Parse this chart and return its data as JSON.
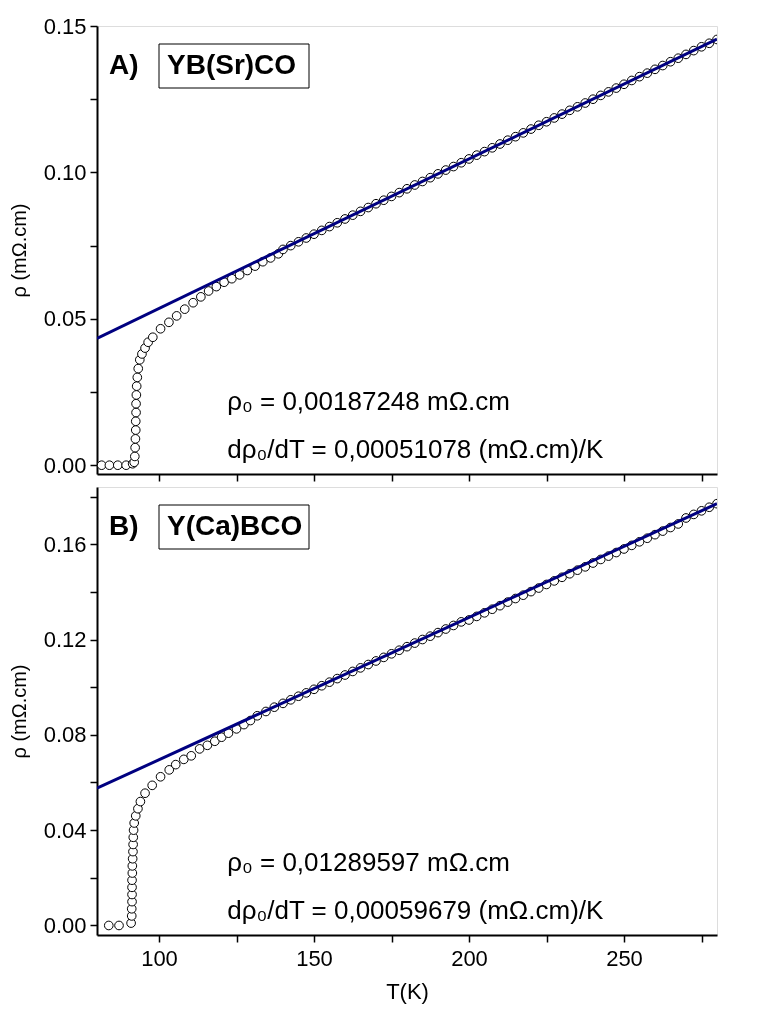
{
  "chart_data": [
    {
      "type": "scatter",
      "ylabel": "ρ (mΩ.cm)",
      "annotations": [
        "A)",
        "YB(Sr)CO",
        "ρ₀ = 0,00187248 mΩ.cm",
        "dρ₀/dT = 0,00051078 (mΩ.cm)/K"
      ],
      "xlim": [
        80,
        280
      ],
      "xticks": [
        {
          "value": 100,
          "label": null
        },
        {
          "value": 125,
          "label": null
        },
        {
          "value": 150,
          "label": null
        },
        {
          "value": 175,
          "label": null
        },
        {
          "value": 200,
          "label": null
        },
        {
          "value": 225,
          "label": null
        },
        {
          "value": 250,
          "label": null
        },
        {
          "value": 275,
          "label": null
        }
      ],
      "ylim": [
        -0.003,
        0.15
      ],
      "yticks": [
        {
          "value": 0,
          "label": "0.00"
        },
        {
          "value": 0.025,
          "label": null
        },
        {
          "value": 0.05,
          "label": "0.05"
        },
        {
          "value": 0.075,
          "label": null
        },
        {
          "value": 0.1,
          "label": "0.10"
        },
        {
          "value": 0.125,
          "label": null
        },
        {
          "value": 0.15,
          "label": "0.15"
        }
      ],
      "tick_labels": "y",
      "series": [
        {
          "marker": "circle",
          "color": "#000000",
          "x": [
            81.5,
            84,
            86.7,
            89.4,
            91.5,
            92,
            92.2,
            92.3,
            92.4,
            92.5,
            92.5,
            92.6,
            92.6,
            92.7,
            92.8,
            93,
            93.3,
            93.8,
            94.5,
            95.5,
            96.5,
            98,
            100.5,
            103.2,
            105.7,
            108.3,
            111,
            113.5,
            116,
            118.5,
            121,
            123.5,
            126,
            128.5,
            131,
            133.5,
            136,
            138.5,
            140,
            142.5,
            145,
            147.5,
            150,
            152.5,
            155,
            157.5,
            160,
            162.5,
            165,
            167.5,
            170,
            172.5,
            175,
            177.5,
            180,
            182.5,
            185,
            187.5,
            190,
            192.5,
            195,
            197.5,
            200,
            202.5,
            205,
            207.5,
            210,
            212.5,
            215,
            217.5,
            220,
            222.5,
            225,
            227.5,
            230,
            232.5,
            235,
            237.5,
            240,
            242.5,
            245,
            247.5,
            250,
            252.5,
            255,
            257.5,
            260,
            262.5,
            265,
            267.5,
            270,
            272.5,
            275,
            277.5,
            280
          ],
          "values": [
            0,
            0,
            0,
            0,
            0.0005,
            0.001,
            0.003,
            0.006,
            0.009,
            0.012,
            0.015,
            0.018,
            0.021,
            0.024,
            0.027,
            0.03,
            0.033,
            0.036,
            0.038,
            0.04,
            0.042,
            0.0437,
            0.0466,
            0.0488,
            0.051,
            0.0533,
            0.0555,
            0.0575,
            0.0595,
            0.061,
            0.0625,
            0.0637,
            0.065,
            0.0665,
            0.068,
            0.0695,
            0.0708,
            0.0722,
            0.0737,
            0.075,
            0.0763,
            0.0776,
            0.0789,
            0.0802,
            0.0815,
            0.0828,
            0.0841,
            0.0854,
            0.0867,
            0.088,
            0.0893,
            0.0905,
            0.0918,
            0.0931,
            0.0944,
            0.0957,
            0.0969,
            0.0982,
            0.0995,
            0.1008,
            0.102,
            0.1033,
            0.1046,
            0.1059,
            0.1071,
            0.1084,
            0.1097,
            0.111,
            0.1122,
            0.1135,
            0.1148,
            0.1161,
            0.1173,
            0.1186,
            0.1199,
            0.1212,
            0.1224,
            0.1237,
            0.125,
            0.1263,
            0.1275,
            0.1288,
            0.1301,
            0.1314,
            0.1327,
            0.1339,
            0.1352,
            0.1365,
            0.1378,
            0.139,
            0.1403,
            0.1416,
            0.1429,
            0.1441,
            0.1454
          ]
        },
        {
          "type": "line",
          "color": "#000080",
          "x": [
            80,
            280
          ],
          "values": [
            0.0433,
            0.1455
          ]
        }
      ]
    },
    {
      "type": "scatter",
      "xlabel": "T(K)",
      "ylabel": "ρ (mΩ.cm)",
      "annotations": [
        "B)",
        "Y(Ca)BCO",
        "ρ₀ = 0,01289597 mΩ.cm",
        "dρ₀/dT = 0,00059679 (mΩ.cm)/K"
      ],
      "xlim": [
        80,
        280
      ],
      "xticks": [
        100,
        {
          "value": 125,
          "label": null
        },
        150,
        {
          "value": 175,
          "label": null
        },
        200,
        {
          "value": 225,
          "label": null
        },
        250,
        {
          "value": 275,
          "label": null
        }
      ],
      "ylim": [
        -0.004,
        0.184
      ],
      "yticks": [
        {
          "value": 0,
          "label": "0.00"
        },
        {
          "value": 0.02,
          "label": null
        },
        {
          "value": 0.04,
          "label": "0.04"
        },
        {
          "value": 0.06,
          "label": null
        },
        {
          "value": 0.08,
          "label": "0.08"
        },
        {
          "value": 0.1,
          "label": null
        },
        {
          "value": 0.12,
          "label": "0.12"
        },
        {
          "value": 0.14,
          "label": null
        },
        {
          "value": 0.16,
          "label": "0.16"
        },
        {
          "value": 0.18,
          "label": null
        }
      ],
      "series": [
        {
          "marker": "circle",
          "color": "#000000",
          "x": [
            83.8,
            87.1,
            91,
            91.2,
            91.2,
            91.3,
            91.3,
            91.3,
            91.3,
            91.4,
            91.4,
            91.5,
            91.6,
            91.65,
            91.7,
            91.8,
            92,
            92.5,
            93.2,
            94,
            95.5,
            97.8,
            100.5,
            103.3,
            105.4,
            108,
            110.4,
            113.1,
            115.6,
            118,
            120.2,
            122.4,
            125,
            127.4,
            129.5,
            131.7,
            134.5,
            137.2,
            140,
            142.5,
            145,
            147.5,
            150,
            152.5,
            155,
            157.5,
            160,
            162.5,
            165,
            167.5,
            170,
            172.5,
            175,
            177.5,
            180,
            182.5,
            185,
            187.5,
            190,
            192.5,
            195,
            197.5,
            200,
            202.5,
            205,
            207.5,
            210,
            212.5,
            215,
            217.5,
            220,
            222.5,
            225,
            227.5,
            230,
            232.5,
            235,
            237.5,
            240,
            242.5,
            245,
            247.5,
            250,
            252.5,
            255,
            257.5,
            260,
            262.5,
            265,
            267.5,
            270,
            272.5,
            275,
            277.5,
            280
          ],
          "values": [
            0,
            0,
            0.001,
            0.004,
            0.007,
            0.01,
            0.013,
            0.016,
            0.019,
            0.022,
            0.025,
            0.028,
            0.031,
            0.034,
            0.037,
            0.04,
            0.043,
            0.046,
            0.049,
            0.052,
            0.0555,
            0.0588,
            0.0624,
            0.0653,
            0.0675,
            0.0697,
            0.0712,
            0.0741,
            0.0756,
            0.0773,
            0.079,
            0.0807,
            0.0825,
            0.0843,
            0.086,
            0.088,
            0.0898,
            0.0916,
            0.0932,
            0.0947,
            0.0962,
            0.0976,
            0.0991,
            0.1006,
            0.1021,
            0.1036,
            0.1051,
            0.1066,
            0.1081,
            0.1095,
            0.111,
            0.1125,
            0.114,
            0.1155,
            0.117,
            0.1185,
            0.12,
            0.1214,
            0.1229,
            0.1244,
            0.1259,
            0.1274,
            0.1282,
            0.1297,
            0.1312,
            0.1327,
            0.1342,
            0.1357,
            0.1372,
            0.1386,
            0.1401,
            0.1416,
            0.1431,
            0.1446,
            0.1461,
            0.1476,
            0.1491,
            0.1505,
            0.1521,
            0.1536,
            0.155,
            0.1565,
            0.158,
            0.1595,
            0.161,
            0.1625,
            0.164,
            0.1655,
            0.167,
            0.1685,
            0.171,
            0.1725,
            0.174,
            0.1755,
            0.177
          ]
        },
        {
          "type": "line",
          "color": "#000080",
          "x": [
            80,
            280
          ],
          "values": [
            0.0576,
            0.177
          ]
        }
      ]
    }
  ]
}
